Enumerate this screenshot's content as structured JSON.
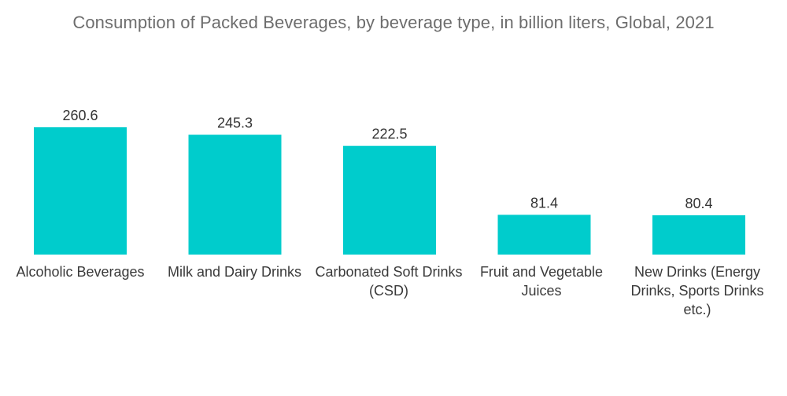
{
  "chart_data": {
    "type": "bar",
    "title": "Consumption of Packed Beverages, by beverage type, in billion liters, Global, 2021",
    "xlabel": "",
    "ylabel": "",
    "categories": [
      "Alcoholic Beverages",
      "Milk and Dairy Drinks",
      "Carbonated Soft Drinks (CSD)",
      "Fruit and Vegetable Juices",
      "New Drinks (Energy Drinks, Sports Drinks etc.)"
    ],
    "values": [
      260.6,
      245.3,
      222.5,
      81.4,
      80.4
    ],
    "value_labels": [
      "260.6",
      "245.3",
      "222.5",
      "81.4",
      "80.4"
    ],
    "ylim": [
      0,
      260.6
    ],
    "grid": false,
    "legend": "none",
    "colors": {
      "bar": "#00cccc",
      "value_label": "#333333",
      "title": "#6d6d6d"
    }
  }
}
